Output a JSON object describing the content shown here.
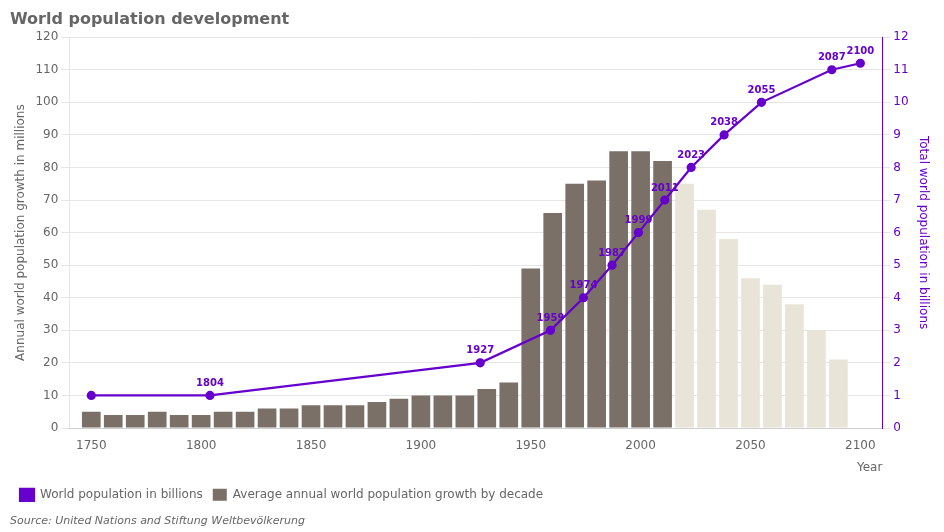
{
  "chart_data": {
    "type": "bar",
    "title": "World population development",
    "x_label": "Year",
    "y_label": "Annual world population growth in millions",
    "y2_label": "Total world population in billions",
    "xlim": [
      1740,
      2110
    ],
    "xticks": [
      1750,
      1800,
      1850,
      1900,
      1950,
      2000,
      2050,
      2100
    ],
    "ylim": [
      0,
      120
    ],
    "yticks": [
      0,
      10,
      20,
      30,
      40,
      50,
      60,
      70,
      80,
      90,
      100,
      110,
      120
    ],
    "y2lim": [
      0,
      12
    ],
    "y2ticks": [
      0,
      1,
      2,
      3,
      4,
      5,
      6,
      7,
      8,
      9,
      10,
      11,
      12
    ],
    "grid": true,
    "legend": "bottom",
    "series": [
      {
        "name": "Average annual world population growth by decade",
        "type": "bar",
        "color": "#7a7068",
        "x": [
          1750,
          1760,
          1770,
          1780,
          1790,
          1800,
          1810,
          1820,
          1830,
          1840,
          1850,
          1860,
          1870,
          1880,
          1890,
          1900,
          1910,
          1920,
          1930,
          1940,
          1950,
          1960,
          1970,
          1980,
          1990,
          2000,
          2010,
          2020,
          2030,
          2040,
          2050,
          2060,
          2070,
          2080,
          2090
        ],
        "values": [
          5,
          4,
          4,
          5,
          4,
          4,
          5,
          5,
          6,
          6,
          7,
          7,
          7,
          8,
          9,
          10,
          10,
          10,
          12,
          14,
          49,
          66,
          75,
          76,
          85,
          85,
          82,
          75,
          67,
          58,
          46,
          44,
          38,
          30,
          21
        ],
        "colors": [
          "#7a7068",
          "#7a7068",
          "#7a7068",
          "#7a7068",
          "#7a7068",
          "#7a7068",
          "#7a7068",
          "#7a7068",
          "#7a7068",
          "#7a7068",
          "#7a7068",
          "#7a7068",
          "#7a7068",
          "#7a7068",
          "#7a7068",
          "#7a7068",
          "#7a7068",
          "#7a7068",
          "#7a7068",
          "#7a7068",
          "#7a7068",
          "#7a7068",
          "#7a7068",
          "#7a7068",
          "#7a7068",
          "#7a7068",
          "#7a7068",
          "#e8e4d8",
          "#e8e4d8",
          "#e8e4d8",
          "#e8e4d8",
          "#e8e4d8",
          "#e8e4d8",
          "#e8e4d8",
          "#e8e4d8"
        ]
      },
      {
        "name": "World population in billions",
        "type": "line",
        "axis": "y2",
        "color": "#6600cc",
        "marker": "circle",
        "x": [
          1750,
          1804,
          1927,
          1959,
          1974,
          1987,
          1999,
          2011,
          2023,
          2038,
          2055,
          2087,
          2100
        ],
        "values": [
          1,
          1,
          2,
          3,
          4,
          5,
          6,
          7,
          8,
          9,
          10,
          11,
          11.2
        ]
      }
    ],
    "annotations": [
      {
        "text": "1804",
        "x": 1804,
        "y": 1,
        "axis": "y2"
      },
      {
        "text": "1927",
        "x": 1927,
        "y": 2,
        "axis": "y2"
      },
      {
        "text": "1959",
        "x": 1959,
        "y": 3,
        "axis": "y2"
      },
      {
        "text": "1974",
        "x": 1974,
        "y": 4,
        "axis": "y2"
      },
      {
        "text": "1987",
        "x": 1987,
        "y": 5,
        "axis": "y2"
      },
      {
        "text": "1999",
        "x": 1999,
        "y": 6,
        "axis": "y2"
      },
      {
        "text": "2011",
        "x": 2011,
        "y": 7,
        "axis": "y2"
      },
      {
        "text": "2023",
        "x": 2023,
        "y": 8,
        "axis": "y2"
      },
      {
        "text": "2038",
        "x": 2038,
        "y": 9,
        "axis": "y2"
      },
      {
        "text": "2055",
        "x": 2055,
        "y": 10,
        "axis": "y2"
      },
      {
        "text": "2087",
        "x": 2087,
        "y": 11,
        "axis": "y2"
      },
      {
        "text": "2100",
        "x": 2100,
        "y": 11.2,
        "axis": "y2"
      },
      {
        "text": "Source: United Nations and Stiftung Weltbevölkerung"
      }
    ]
  }
}
